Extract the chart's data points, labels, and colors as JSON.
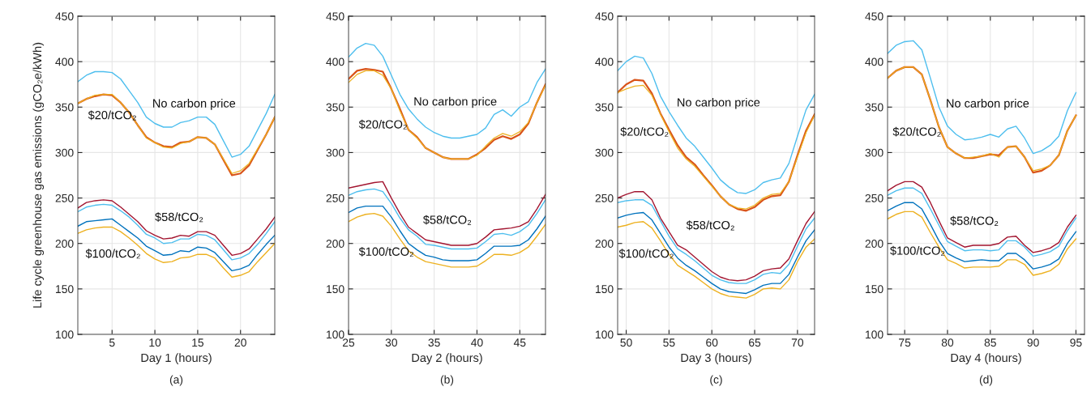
{
  "chart_data": [
    {
      "type": "line",
      "xlabel": "Day 1 (hours)",
      "ylabel": "Life cycle greenhouse gas emissions (gCO₂e/kWh)",
      "x": [
        1,
        2,
        3,
        4,
        5,
        6,
        7,
        8,
        9,
        10,
        11,
        12,
        13,
        14,
        15,
        16,
        17,
        18,
        19,
        20,
        21,
        22,
        23,
        24
      ],
      "xlim": [
        1,
        24
      ],
      "xticks": [
        5,
        10,
        15,
        20
      ],
      "ylim": [
        100,
        450
      ],
      "yticks": [
        100,
        150,
        200,
        250,
        300,
        350,
        400,
        450
      ],
      "grid": true,
      "legend": false,
      "series": [
        {
          "color": "#4dbeee",
          "values": [
            378,
            385,
            389,
            389,
            388,
            381,
            368,
            355,
            339,
            332,
            328,
            328,
            333,
            335,
            339,
            339,
            331,
            313,
            295,
            298,
            307,
            325,
            343,
            364
          ]
        },
        {
          "color": "#d95319",
          "values": [
            354,
            359,
            362,
            364,
            363,
            355,
            344,
            330,
            317,
            311,
            307,
            306,
            311,
            312,
            317,
            316,
            309,
            292,
            275,
            277,
            286,
            303,
            320,
            339
          ]
        },
        {
          "color": "#edb120",
          "values": [
            354,
            359,
            363,
            364,
            364,
            355,
            344,
            330,
            316,
            311,
            306,
            305,
            310,
            312,
            317,
            316,
            309,
            293,
            277,
            280,
            288,
            304,
            320,
            339
          ]
        },
        {
          "color": "#a2142f",
          "values": [
            239,
            245,
            247,
            248,
            247,
            240,
            232,
            224,
            214,
            209,
            205,
            206,
            209,
            208,
            213,
            213,
            209,
            198,
            187,
            189,
            194,
            205,
            216,
            229
          ]
        },
        {
          "color": "#4dbeee",
          "values": [
            235,
            240,
            242,
            243,
            242,
            236,
            229,
            220,
            210,
            206,
            200,
            201,
            205,
            205,
            210,
            209,
            204,
            193,
            182,
            184,
            189,
            199,
            211,
            224
          ]
        },
        {
          "color": "#0072bd",
          "values": [
            219,
            224,
            225,
            226,
            227,
            220,
            213,
            206,
            197,
            192,
            187,
            188,
            192,
            191,
            196,
            195,
            190,
            180,
            170,
            172,
            176,
            188,
            199,
            209
          ]
        },
        {
          "color": "#edb120",
          "values": [
            211,
            215,
            217,
            218,
            218,
            213,
            206,
            198,
            189,
            183,
            179,
            180,
            184,
            185,
            188,
            188,
            184,
            173,
            163,
            165,
            169,
            180,
            190,
            200
          ]
        }
      ],
      "annotations": [
        "No carbon price",
        "$20/tCO₂",
        "$58/tCO₂",
        "$100/tCO₂",
        "(a)"
      ]
    },
    {
      "type": "line",
      "xlabel": "Day 2 (hours)",
      "x": [
        25,
        26,
        27,
        28,
        29,
        30,
        31,
        32,
        33,
        34,
        35,
        36,
        37,
        38,
        39,
        40,
        41,
        42,
        43,
        44,
        45,
        46,
        47,
        48
      ],
      "xlim": [
        25,
        48
      ],
      "xticks": [
        25,
        30,
        35,
        40,
        45
      ],
      "ylim": [
        100,
        450
      ],
      "yticks": [
        100,
        150,
        200,
        250,
        300,
        350,
        400,
        450
      ],
      "grid": true,
      "legend": false,
      "series": [
        {
          "color": "#4dbeee",
          "values": [
            405,
            415,
            420,
            418,
            406,
            385,
            364,
            348,
            337,
            328,
            322,
            318,
            316,
            316,
            318,
            320,
            327,
            342,
            347,
            340,
            350,
            356,
            377,
            392
          ]
        },
        {
          "color": "#d95319",
          "values": [
            381,
            390,
            392,
            391,
            389,
            370,
            348,
            325,
            317,
            305,
            300,
            295,
            293,
            293,
            293,
            298,
            305,
            314,
            318,
            315,
            320,
            332,
            355,
            375
          ]
        },
        {
          "color": "#edb120",
          "values": [
            377,
            386,
            390,
            390,
            385,
            370,
            346,
            325,
            316,
            305,
            300,
            295,
            293,
            293,
            293,
            297,
            307,
            316,
            321,
            318,
            323,
            333,
            355,
            374
          ]
        },
        {
          "color": "#a2142f",
          "values": [
            261,
            263,
            265,
            267,
            268,
            250,
            233,
            218,
            211,
            204,
            202,
            200,
            198,
            198,
            198,
            200,
            207,
            215,
            216,
            217,
            219,
            224,
            238,
            254
          ]
        },
        {
          "color": "#4dbeee",
          "values": [
            253,
            257,
            259,
            260,
            257,
            244,
            228,
            215,
            208,
            199,
            198,
            196,
            194,
            194,
            194,
            195,
            202,
            210,
            211,
            209,
            213,
            220,
            233,
            248
          ]
        },
        {
          "color": "#0072bd",
          "values": [
            234,
            239,
            241,
            241,
            241,
            229,
            214,
            200,
            193,
            187,
            185,
            182,
            181,
            181,
            181,
            182,
            189,
            197,
            197,
            197,
            198,
            204,
            216,
            230
          ]
        },
        {
          "color": "#edb120",
          "values": [
            224,
            229,
            232,
            233,
            230,
            219,
            205,
            192,
            185,
            180,
            178,
            176,
            174,
            174,
            174,
            175,
            181,
            188,
            188,
            187,
            190,
            196,
            208,
            221
          ]
        }
      ],
      "annotations": [
        "No carbon price",
        "$20/tCO₂",
        "$58/tCO₂",
        "$100/tCO₂",
        "(b)"
      ]
    },
    {
      "type": "line",
      "xlabel": "Day 3 (hours)",
      "x": [
        49,
        50,
        51,
        52,
        53,
        54,
        55,
        56,
        57,
        58,
        59,
        60,
        61,
        62,
        63,
        64,
        65,
        66,
        67,
        68,
        69,
        70,
        71,
        72
      ],
      "xlim": [
        49,
        72
      ],
      "xticks": [
        50,
        55,
        60,
        65,
        70
      ],
      "ylim": [
        100,
        450
      ],
      "yticks": [
        100,
        150,
        200,
        250,
        300,
        350,
        400,
        450
      ],
      "grid": true,
      "legend": false,
      "series": [
        {
          "color": "#4dbeee",
          "values": [
            390,
            400,
            406,
            404,
            387,
            362,
            345,
            330,
            316,
            307,
            295,
            283,
            270,
            262,
            256,
            255,
            259,
            267,
            270,
            272,
            288,
            318,
            347,
            364
          ]
        },
        {
          "color": "#d95319",
          "values": [
            366,
            375,
            380,
            379,
            365,
            343,
            325,
            308,
            295,
            287,
            275,
            264,
            252,
            243,
            238,
            236,
            240,
            248,
            252,
            253,
            268,
            297,
            324,
            342
          ]
        },
        {
          "color": "#edb120",
          "values": [
            366,
            370,
            373,
            374,
            363,
            342,
            323,
            305,
            293,
            285,
            274,
            263,
            252,
            243,
            239,
            238,
            242,
            250,
            254,
            255,
            268,
            295,
            322,
            341
          ]
        },
        {
          "color": "#a2142f",
          "values": [
            250,
            254,
            257,
            257,
            248,
            228,
            213,
            198,
            193,
            185,
            177,
            169,
            163,
            160,
            159,
            160,
            164,
            170,
            172,
            173,
            183,
            203,
            222,
            235
          ]
        },
        {
          "color": "#4dbeee",
          "values": [
            245,
            247,
            248,
            248,
            242,
            225,
            208,
            194,
            188,
            181,
            173,
            165,
            160,
            157,
            156,
            156,
            160,
            166,
            168,
            167,
            177,
            197,
            216,
            228
          ]
        },
        {
          "color": "#0072bd",
          "values": [
            228,
            231,
            233,
            234,
            226,
            211,
            196,
            184,
            176,
            170,
            163,
            156,
            150,
            147,
            146,
            145,
            149,
            154,
            156,
            156,
            166,
            185,
            203,
            215
          ]
        },
        {
          "color": "#edb120",
          "values": [
            218,
            220,
            223,
            224,
            217,
            203,
            188,
            176,
            170,
            164,
            157,
            150,
            145,
            142,
            141,
            140,
            144,
            150,
            151,
            150,
            160,
            180,
            196,
            205
          ]
        }
      ],
      "annotations": [
        "No carbon price",
        "$20/tCO₂",
        "$58/tCO₂",
        "$100/tCO₂",
        "(c)"
      ]
    },
    {
      "type": "line",
      "xlabel": "Day 4 (hours)",
      "x": [
        73,
        74,
        75,
        76,
        77,
        78,
        79,
        80,
        81,
        82,
        83,
        84,
        85,
        86,
        87,
        88,
        89,
        90,
        91,
        92,
        93,
        94,
        95
      ],
      "xlim": [
        73,
        96
      ],
      "xticks": [
        75,
        80,
        85,
        90,
        95
      ],
      "ylim": [
        100,
        450
      ],
      "yticks": [
        100,
        150,
        200,
        250,
        300,
        350,
        400,
        450
      ],
      "grid": true,
      "legend": false,
      "series": [
        {
          "color": "#4dbeee",
          "values": [
            409,
            418,
            422,
            423,
            413,
            382,
            350,
            329,
            320,
            314,
            315,
            317,
            320,
            317,
            326,
            329,
            316,
            299,
            302,
            308,
            318,
            346,
            366
          ]
        },
        {
          "color": "#d95319",
          "values": [
            382,
            390,
            394,
            394,
            386,
            358,
            328,
            306,
            299,
            294,
            294,
            296,
            298,
            297,
            306,
            307,
            295,
            278,
            280,
            286,
            297,
            324,
            341
          ]
        },
        {
          "color": "#edb120",
          "values": [
            382,
            390,
            394,
            394,
            386,
            358,
            328,
            306,
            299,
            294,
            295,
            296,
            299,
            295,
            306,
            307,
            295,
            280,
            282,
            286,
            297,
            324,
            341
          ]
        },
        {
          "color": "#a2142f",
          "values": [
            258,
            264,
            268,
            268,
            262,
            245,
            225,
            206,
            201,
            196,
            198,
            198,
            198,
            200,
            207,
            208,
            198,
            190,
            192,
            195,
            201,
            218,
            231
          ]
        },
        {
          "color": "#4dbeee",
          "values": [
            253,
            258,
            261,
            261,
            255,
            238,
            220,
            202,
            197,
            192,
            193,
            193,
            192,
            193,
            203,
            203,
            196,
            186,
            188,
            191,
            197,
            214,
            228
          ]
        },
        {
          "color": "#0072bd",
          "values": [
            236,
            241,
            245,
            245,
            238,
            221,
            203,
            189,
            184,
            180,
            181,
            182,
            181,
            181,
            189,
            189,
            182,
            172,
            174,
            177,
            183,
            200,
            213
          ]
        },
        {
          "color": "#edb120",
          "values": [
            227,
            232,
            235,
            235,
            229,
            212,
            196,
            182,
            178,
            173,
            174,
            174,
            174,
            175,
            182,
            182,
            177,
            165,
            167,
            170,
            177,
            194,
            205
          ]
        }
      ],
      "annotations": [
        "No carbon price",
        "$20/tCO₂",
        "$58/tCO₂",
        "$100/tCO₂",
        "(d)"
      ]
    }
  ]
}
